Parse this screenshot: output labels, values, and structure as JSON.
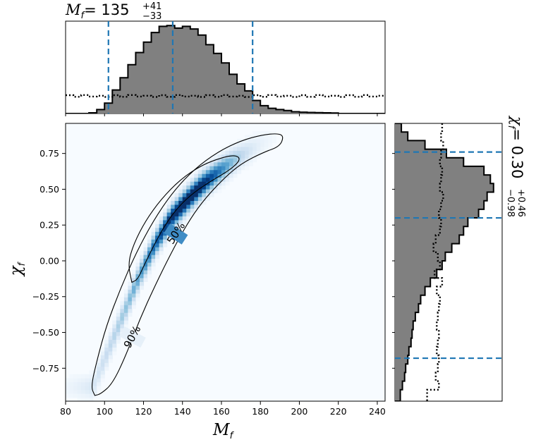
{
  "chart_data": [
    {
      "type": "heatmap",
      "panel": "joint",
      "xlabel": "M",
      "xlabel_sub": "f",
      "ylabel": "χ",
      "ylabel_sub": "f",
      "xlim": [
        80,
        244
      ],
      "ylim": [
        -0.98,
        0.96
      ],
      "xticks": [
        80,
        100,
        120,
        140,
        160,
        180,
        200,
        220,
        240
      ],
      "yticks": [
        0.75,
        0.5,
        0.25,
        0.0,
        -0.25,
        -0.5,
        -0.75
      ],
      "ytick_labels": [
        "0.75",
        "0.50",
        "0.25",
        "0.00",
        "−0.25",
        "−0.50",
        "−0.75"
      ],
      "colormap": "Blues",
      "ridge_x": [
        94,
        102,
        110,
        118,
        126,
        134,
        142,
        150,
        158,
        166,
        174,
        182,
        190
      ],
      "ridge_y": [
        -0.88,
        -0.62,
        -0.36,
        -0.1,
        0.12,
        0.3,
        0.42,
        0.53,
        0.62,
        0.7,
        0.77,
        0.83,
        0.87
      ],
      "contours": [
        {
          "label": "50%",
          "points": [
            [
              114,
              -0.15
            ],
            [
              112,
              -0.02
            ],
            [
              115,
              0.12
            ],
            [
              121,
              0.28
            ],
            [
              129,
              0.43
            ],
            [
              139,
              0.57
            ],
            [
              150,
              0.67
            ],
            [
              160,
              0.72
            ],
            [
              167,
              0.74
            ],
            [
              170,
              0.71
            ],
            [
              165,
              0.64
            ],
            [
              155,
              0.56
            ],
            [
              146,
              0.48
            ],
            [
              138,
              0.38
            ],
            [
              131,
              0.25
            ],
            [
              125,
              0.1
            ],
            [
              120,
              -0.04
            ],
            [
              117,
              -0.13
            ],
            [
              114,
              -0.15
            ]
          ]
        },
        {
          "label": "90%",
          "points": [
            [
              95,
              -0.94
            ],
            [
              93,
              -0.88
            ],
            [
              96,
              -0.7
            ],
            [
              101,
              -0.45
            ],
            [
              108,
              -0.2
            ],
            [
              116,
              0.05
            ],
            [
              125,
              0.28
            ],
            [
              135,
              0.48
            ],
            [
              146,
              0.64
            ],
            [
              158,
              0.76
            ],
            [
              170,
              0.84
            ],
            [
              181,
              0.88
            ],
            [
              189,
              0.89
            ],
            [
              192,
              0.87
            ],
            [
              190,
              0.8
            ],
            [
              182,
              0.76
            ],
            [
              170,
              0.68
            ],
            [
              160,
              0.56
            ],
            [
              150,
              0.41
            ],
            [
              142,
              0.25
            ],
            [
              134,
              0.05
            ],
            [
              126,
              -0.17
            ],
            [
              118,
              -0.41
            ],
            [
              111,
              -0.66
            ],
            [
              104,
              -0.86
            ],
            [
              98,
              -0.93
            ],
            [
              95,
              -0.94
            ]
          ]
        }
      ]
    },
    {
      "type": "bar",
      "panel": "top-marginal",
      "title_symbol": "M",
      "title_sub": "f",
      "title_value": "= 135",
      "title_plus": "+41",
      "title_minus": "−33",
      "xlim": [
        80,
        244
      ],
      "bin_edges": [
        80,
        84,
        88,
        92,
        96,
        100,
        104,
        108,
        112,
        116,
        120,
        124,
        128,
        132,
        136,
        140,
        144,
        148,
        152,
        156,
        160,
        164,
        168,
        172,
        176,
        180,
        184,
        188,
        192,
        196,
        200,
        204,
        208,
        212,
        216,
        220,
        224,
        228,
        232,
        236,
        240,
        244
      ],
      "values": [
        0,
        0,
        0,
        0.008,
        0.045,
        0.12,
        0.27,
        0.41,
        0.56,
        0.7,
        0.82,
        0.93,
        1.0,
        1.01,
        0.98,
        1.0,
        0.97,
        0.9,
        0.79,
        0.69,
        0.58,
        0.45,
        0.34,
        0.26,
        0.15,
        0.09,
        0.06,
        0.045,
        0.035,
        0.02,
        0.015,
        0.012,
        0.01,
        0.008,
        0.006,
        0,
        0,
        0,
        0,
        0,
        0
      ],
      "prior_level": 0.2,
      "quantiles": [
        102,
        135,
        176
      ]
    },
    {
      "type": "bar",
      "panel": "right-marginal",
      "title_symbol": "χ",
      "title_sub": "f",
      "title_value": "= 0.30",
      "title_plus": "+0.46",
      "title_minus": "−0.98",
      "ylim": [
        -0.98,
        0.96
      ],
      "bin_edges": [
        0.96,
        0.9,
        0.84,
        0.78,
        0.72,
        0.66,
        0.6,
        0.54,
        0.48,
        0.42,
        0.36,
        0.3,
        0.24,
        0.18,
        0.12,
        0.06,
        0.0,
        -0.06,
        -0.12,
        -0.18,
        -0.24,
        -0.3,
        -0.36,
        -0.42,
        -0.48,
        -0.54,
        -0.6,
        -0.66,
        -0.72,
        -0.78,
        -0.84,
        -0.9,
        -0.98
      ],
      "values": [
        0.06,
        0.12,
        0.28,
        0.48,
        0.64,
        0.83,
        0.89,
        0.92,
        0.86,
        0.83,
        0.78,
        0.68,
        0.64,
        0.6,
        0.53,
        0.47,
        0.44,
        0.39,
        0.33,
        0.28,
        0.24,
        0.22,
        0.19,
        0.17,
        0.16,
        0.15,
        0.13,
        0.12,
        0.1,
        0.09,
        0.07,
        0.05
      ],
      "prior_values": [
        0.44,
        0.43,
        0.45,
        0.43,
        0.42,
        0.44,
        0.43,
        0.42,
        0.45,
        0.43,
        0.41,
        0.43,
        0.42,
        0.38,
        0.36,
        0.4,
        0.42,
        0.37,
        0.44,
        0.39,
        0.42,
        0.41,
        0.4,
        0.39,
        0.41,
        0.4,
        0.39,
        0.41,
        0.4,
        0.38,
        0.41,
        0.3
      ],
      "quantiles": [
        0.76,
        0.3,
        -0.68
      ]
    }
  ]
}
